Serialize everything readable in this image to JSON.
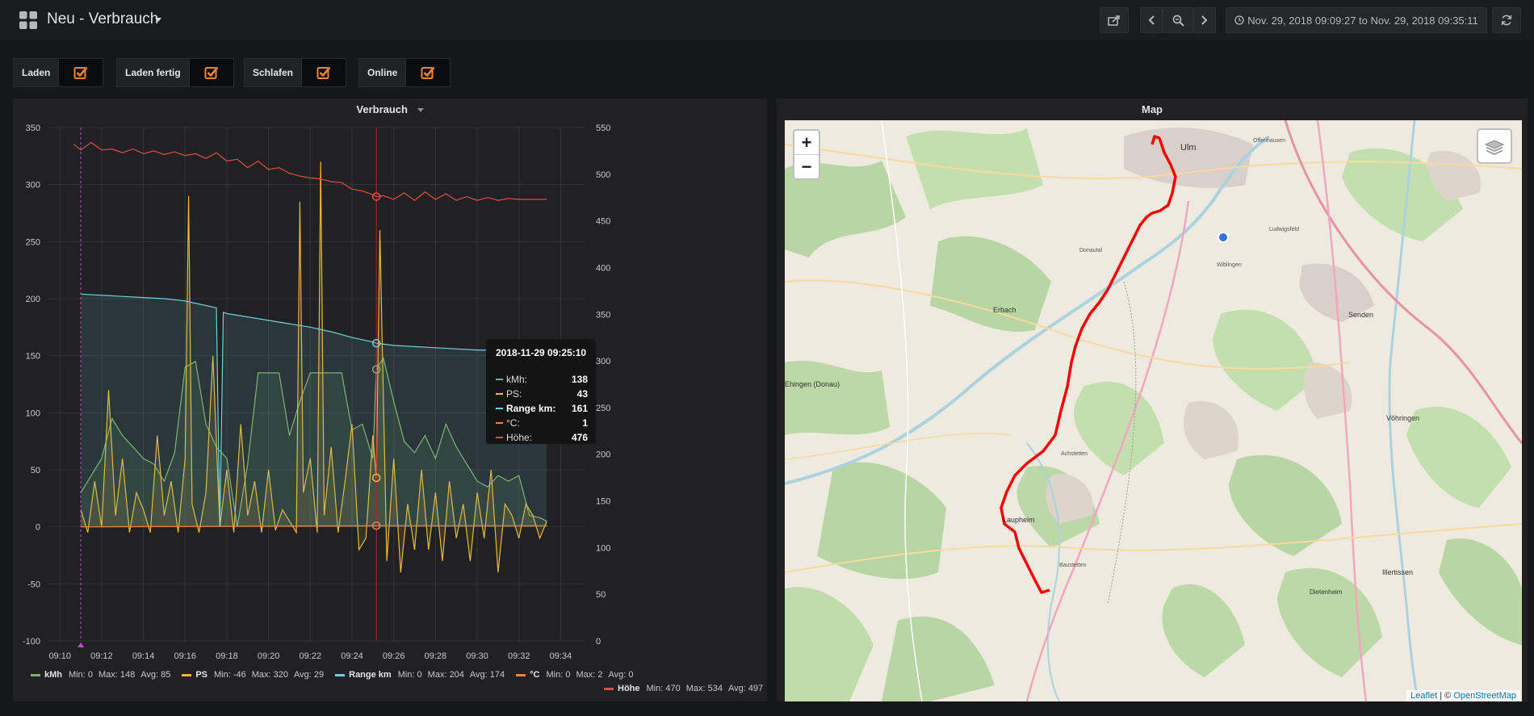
{
  "header": {
    "title": "Neu - Verbrauch",
    "time_range": "Nov. 29, 2018 09:09:27 to Nov. 29, 2018 09:35:11"
  },
  "variables": [
    {
      "label": "Laden",
      "checked": true
    },
    {
      "label": "Laden fertig",
      "checked": true
    },
    {
      "label": "Schlafen",
      "checked": true
    },
    {
      "label": "Online",
      "checked": true
    }
  ],
  "graph_panel": {
    "title": "Verbrauch",
    "legend": [
      {
        "name": "kMh",
        "color": "#7eb26d",
        "min": "Min: 0",
        "max": "Max: 148",
        "avg": "Avg: 85"
      },
      {
        "name": "PS",
        "color": "#eab839",
        "min": "Min: -46",
        "max": "Max: 320",
        "avg": "Avg: 29"
      },
      {
        "name": "Range km",
        "color": "#6ed0e0",
        "min": "Min: 0",
        "max": "Max: 204",
        "avg": "Avg: 174"
      },
      {
        "name": "°C",
        "color": "#ef843c",
        "min": "Min: 0",
        "max": "Max: 2",
        "avg": "Avg: 0"
      },
      {
        "name": "Höhe",
        "color": "#e24d42",
        "min": "Min: 470",
        "max": "Max: 534",
        "avg": "Avg: 497"
      }
    ],
    "tooltip": {
      "title": "2018-11-29 09:25:10",
      "rows": [
        {
          "label": "kMh:",
          "value": "138",
          "color": "#7eb26d"
        },
        {
          "label": "PS:",
          "value": "43",
          "color": "#eab839"
        },
        {
          "label": "Range km:",
          "value": "161",
          "color": "#6ed0e0",
          "bold": true
        },
        {
          "label": "°C:",
          "value": "1",
          "color": "#ef843c"
        },
        {
          "label": "Höhe:",
          "value": "476",
          "color": "#e24d42"
        }
      ]
    }
  },
  "chart_data": {
    "type": "line",
    "x_ticks": [
      "09:10",
      "09:12",
      "09:14",
      "09:16",
      "09:18",
      "09:20",
      "09:22",
      "09:24",
      "09:26",
      "09:28",
      "09:30",
      "09:32",
      "09:34"
    ],
    "xlim": [
      "09:09:27",
      "09:35:11"
    ],
    "y_left_ticks": [
      "350",
      "300",
      "250",
      "200",
      "150",
      "100",
      "50",
      "0",
      "-50",
      "-100"
    ],
    "y_left_lim": [
      -100,
      350
    ],
    "y_right_ticks": [
      "550",
      "500",
      "450",
      "400",
      "350",
      "300",
      "250",
      "200",
      "150",
      "100",
      "50",
      "0"
    ],
    "y_right_lim": [
      0,
      550
    ],
    "series": [
      {
        "name": "kMh",
        "axis": "left",
        "color": "#7eb26d",
        "x": [
          "09:11:00",
          "09:11:30",
          "09:12:00",
          "09:12:30",
          "09:13:00",
          "09:13:30",
          "09:14:00",
          "09:14:30",
          "09:15:00",
          "09:15:30",
          "09:16:00",
          "09:16:30",
          "09:17:00",
          "09:17:30",
          "09:18:00",
          "09:18:30",
          "09:19:00",
          "09:19:30",
          "09:20:00",
          "09:20:30",
          "09:21:00",
          "09:21:30",
          "09:22:00",
          "09:22:30",
          "09:23:00",
          "09:23:30",
          "09:24:00",
          "09:24:30",
          "09:25:00",
          "09:25:10",
          "09:25:30",
          "09:26:00",
          "09:26:30",
          "09:27:00",
          "09:27:30",
          "09:28:00",
          "09:28:30",
          "09:29:00",
          "09:29:30",
          "09:30:00",
          "09:30:30",
          "09:31:00",
          "09:31:30",
          "09:32:00",
          "09:32:30",
          "09:33:00",
          "09:33:20"
        ],
        "y": [
          30,
          45,
          60,
          95,
          80,
          70,
          60,
          55,
          40,
          65,
          140,
          145,
          90,
          70,
          60,
          0,
          55,
          135,
          135,
          135,
          80,
          110,
          135,
          135,
          135,
          135,
          85,
          90,
          60,
          138,
          148,
          110,
          75,
          65,
          80,
          60,
          90,
          70,
          55,
          40,
          35,
          45,
          40,
          45,
          10,
          8,
          5
        ]
      },
      {
        "name": "PS",
        "axis": "left",
        "color": "#eab839",
        "x": [
          "09:11:00",
          "09:11:20",
          "09:11:40",
          "09:12:00",
          "09:12:20",
          "09:12:40",
          "09:13:00",
          "09:13:20",
          "09:13:40",
          "09:14:00",
          "09:14:20",
          "09:14:40",
          "09:15:00",
          "09:15:20",
          "09:15:40",
          "09:16:00",
          "09:16:10",
          "09:16:20",
          "09:16:40",
          "09:17:00",
          "09:17:20",
          "09:17:40",
          "09:18:00",
          "09:18:20",
          "09:18:40",
          "09:19:00",
          "09:19:20",
          "09:19:40",
          "09:20:00",
          "09:20:20",
          "09:20:40",
          "09:21:00",
          "09:21:20",
          "09:21:30",
          "09:21:40",
          "09:22:00",
          "09:22:20",
          "09:22:30",
          "09:22:40",
          "09:23:00",
          "09:23:20",
          "09:23:40",
          "09:24:00",
          "09:24:20",
          "09:24:40",
          "09:25:00",
          "09:25:10",
          "09:25:20",
          "09:25:40",
          "09:26:00",
          "09:26:20",
          "09:26:40",
          "09:27:00",
          "09:27:20",
          "09:27:40",
          "09:28:00",
          "09:28:20",
          "09:28:40",
          "09:29:00",
          "09:29:20",
          "09:29:40",
          "09:30:00",
          "09:30:20",
          "09:30:40",
          "09:31:00",
          "09:31:20",
          "09:31:40",
          "09:32:00",
          "09:32:20",
          "09:32:40",
          "09:33:00",
          "09:33:20"
        ],
        "y": [
          15,
          -5,
          40,
          0,
          120,
          10,
          60,
          -5,
          30,
          15,
          -5,
          80,
          10,
          40,
          -5,
          60,
          290,
          20,
          -5,
          30,
          150,
          0,
          50,
          -5,
          90,
          10,
          40,
          -5,
          50,
          -3,
          15,
          5,
          -5,
          285,
          30,
          60,
          -5,
          320,
          10,
          70,
          -5,
          40,
          90,
          -20,
          -10,
          80,
          43,
          260,
          -30,
          60,
          -40,
          20,
          -20,
          50,
          -20,
          30,
          -30,
          40,
          -10,
          20,
          -30,
          30,
          -10,
          50,
          -40,
          20,
          10,
          -10,
          20,
          10,
          -10,
          5
        ]
      },
      {
        "name": "Range km",
        "axis": "left",
        "color": "#6ed0e0",
        "x": [
          "09:11:00",
          "09:12:00",
          "09:13:00",
          "09:14:00",
          "09:15:00",
          "09:16:00",
          "09:17:00",
          "09:17:30",
          "09:17:40",
          "09:17:50",
          "09:18:00",
          "09:19:00",
          "09:20:00",
          "09:21:00",
          "09:22:00",
          "09:23:00",
          "09:24:00",
          "09:25:00",
          "09:25:10",
          "09:26:00",
          "09:27:00",
          "09:28:00",
          "09:29:00",
          "09:30:00",
          "09:31:00",
          "09:32:00",
          "09:33:20"
        ],
        "y": [
          204,
          203,
          202,
          201,
          200,
          198,
          194,
          192,
          0,
          188,
          187,
          184,
          181,
          178,
          175,
          171,
          166,
          162,
          161,
          159,
          158,
          157,
          156,
          155,
          155,
          154,
          153
        ]
      },
      {
        "name": "°C",
        "axis": "left",
        "color": "#ef843c",
        "x": [
          "09:11:00",
          "09:25:10",
          "09:33:20"
        ],
        "y": [
          0,
          1,
          1
        ]
      },
      {
        "name": "Höhe",
        "axis": "right",
        "color": "#e24d42",
        "x": [
          "09:10:40",
          "09:11:00",
          "09:11:30",
          "09:12:00",
          "09:12:30",
          "09:13:00",
          "09:13:30",
          "09:14:00",
          "09:14:30",
          "09:15:00",
          "09:15:30",
          "09:16:00",
          "09:16:30",
          "09:17:00",
          "09:17:30",
          "09:18:00",
          "09:18:30",
          "09:19:00",
          "09:19:30",
          "09:20:00",
          "09:20:30",
          "09:21:00",
          "09:21:30",
          "09:22:00",
          "09:22:30",
          "09:23:00",
          "09:23:30",
          "09:24:00",
          "09:24:30",
          "09:25:00",
          "09:25:10",
          "09:25:30",
          "09:26:00",
          "09:26:30",
          "09:27:00",
          "09:27:30",
          "09:28:00",
          "09:28:30",
          "09:29:00",
          "09:29:30",
          "09:30:00",
          "09:30:30",
          "09:31:00",
          "09:31:30",
          "09:32:00",
          "09:32:30",
          "09:33:20"
        ],
        "y": [
          532,
          526,
          534,
          526,
          527,
          523,
          527,
          522,
          525,
          521,
          524,
          520,
          522,
          517,
          523,
          514,
          516,
          507,
          514,
          505,
          507,
          501,
          498,
          496,
          495,
          492,
          491,
          484,
          482,
          478,
          476,
          477,
          473,
          480,
          472,
          481,
          473,
          479,
          472,
          476,
          472,
          475,
          472,
          474,
          473,
          473,
          473
        ]
      }
    ],
    "annotation_x": "09:11:00",
    "cursor_x": "09:25:10"
  },
  "map_panel": {
    "title": "Map",
    "zoom_in": "+",
    "zoom_out": "−",
    "attribution_link": "Leaflet",
    "attribution_sep": "| ©",
    "attribution_osm": "OpenStreetMap",
    "places": [
      {
        "name": "Ulm"
      },
      {
        "name": "Offenhausen"
      },
      {
        "name": "Donautal"
      },
      {
        "name": "Wiblingen"
      },
      {
        "name": "Ludwigsfeld"
      },
      {
        "name": "Erbach"
      },
      {
        "name": "Senden"
      },
      {
        "name": "Vöhringen"
      },
      {
        "name": "Laupheim"
      },
      {
        "name": "Illertissen"
      },
      {
        "name": "Dietenheim"
      },
      {
        "name": "Ehingen (Donau)"
      },
      {
        "name": "Achstetten"
      },
      {
        "name": "Baustetten"
      }
    ]
  }
}
